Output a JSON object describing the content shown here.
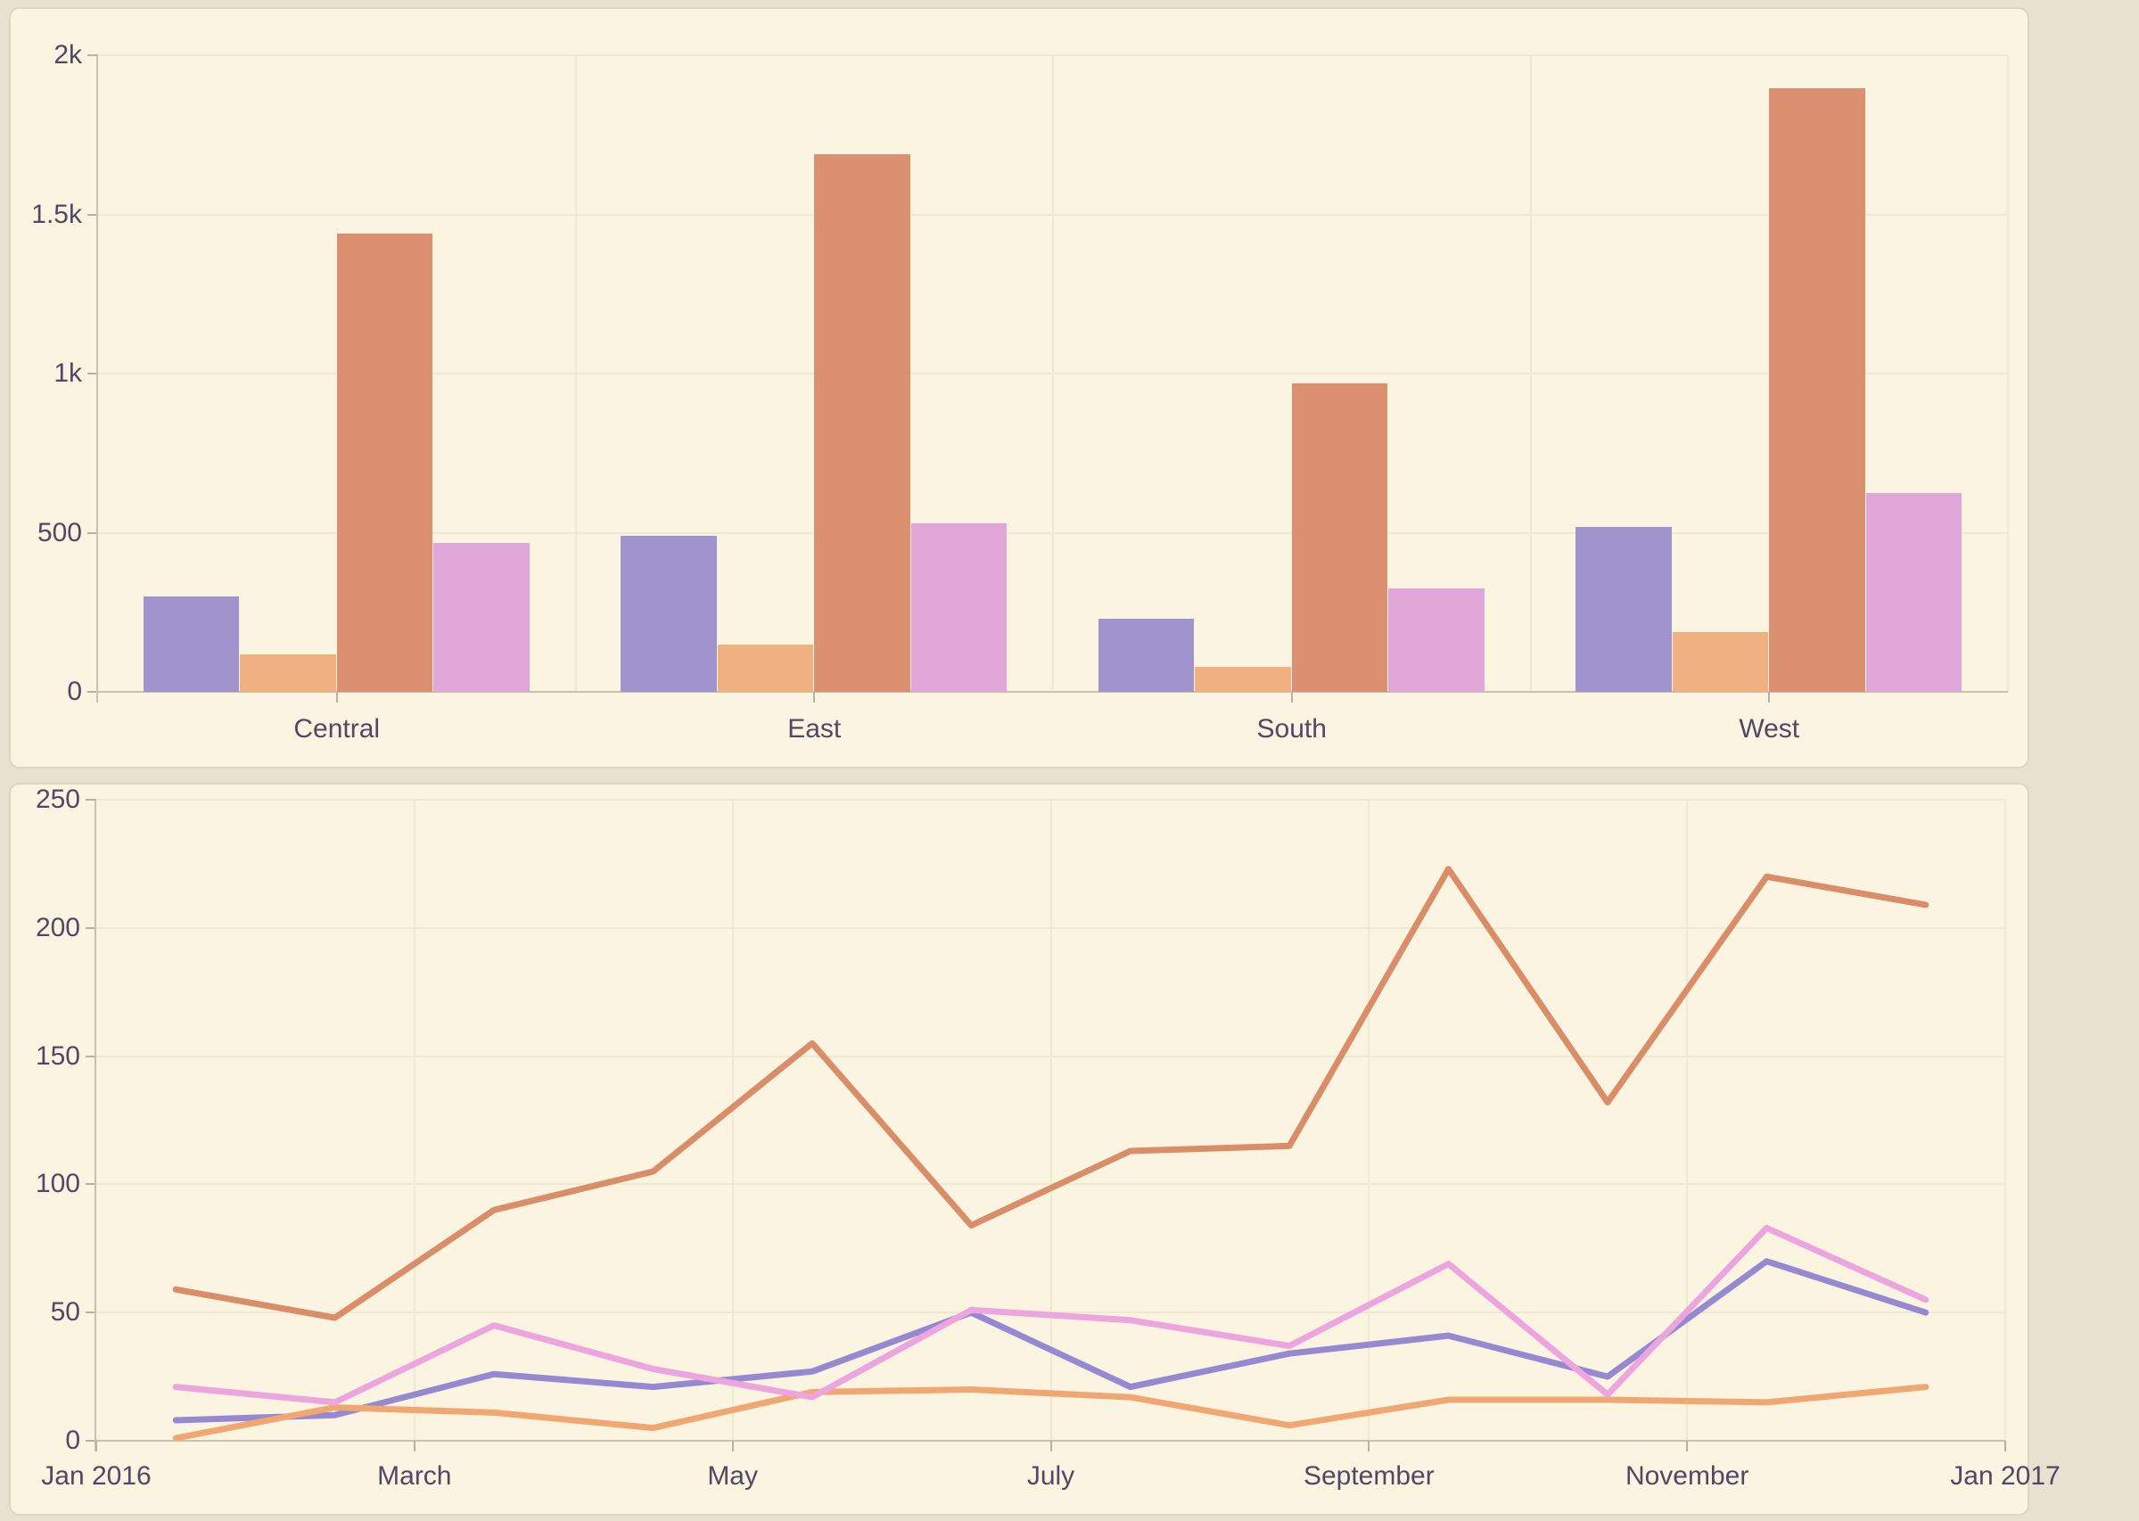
{
  "colors": {
    "page_bg": "#e9e1d0",
    "panel_bg": "#fbf4e1",
    "panel_border": "#ddd6c1",
    "grid": "#f1e8d1",
    "axis_line": "#c9c2af",
    "tick_mark": "#b8b19e",
    "label_text": "#504864"
  },
  "chart_data": [
    {
      "type": "bar",
      "title": "",
      "xlabel": "",
      "ylabel": "",
      "categories": [
        "Central",
        "East",
        "South",
        "West"
      ],
      "series": [
        {
          "color": "#a193ce",
          "values": [
            300,
            490,
            230,
            518
          ]
        },
        {
          "color": "#f0b07f",
          "values": [
            118,
            148,
            78,
            188
          ]
        },
        {
          "color": "#db9170",
          "values": [
            1440,
            1690,
            970,
            1895
          ]
        },
        {
          "color": "#e0a6d8",
          "values": [
            468,
            530,
            325,
            625
          ]
        }
      ],
      "ylim": [
        0,
        2000
      ],
      "ytick_step": 500,
      "ytick_labels": [
        "0",
        "500",
        "1k",
        "1.5k",
        "2k"
      ],
      "grid": true,
      "legend_position": "none"
    },
    {
      "type": "line",
      "title": "",
      "xlabel": "",
      "ylabel": "",
      "x_tick_labels": [
        "Jan 2016",
        "March",
        "May",
        "July",
        "September",
        "November",
        "Jan 2017"
      ],
      "months_per_tick_label": 2,
      "series": [
        {
          "color": "#9689d1",
          "values": [
            8,
            10,
            26,
            21,
            27,
            50,
            21,
            34,
            41,
            25,
            70,
            50
          ]
        },
        {
          "color": "#f1a772",
          "values": [
            1,
            13,
            11,
            5,
            19,
            20,
            17,
            6,
            16,
            16,
            15,
            21
          ]
        },
        {
          "color": "#d98d68",
          "values": [
            59,
            48,
            90,
            105,
            155,
            84,
            113,
            115,
            223,
            132,
            220,
            209
          ]
        },
        {
          "color": "#eca5de",
          "values": [
            21,
            15,
            45,
            28,
            17,
            51,
            47,
            37,
            69,
            18,
            83,
            55
          ]
        }
      ],
      "ylim": [
        0,
        250
      ],
      "ytick_step": 50,
      "ytick_labels": [
        "0",
        "50",
        "100",
        "150",
        "200",
        "250"
      ],
      "grid": true,
      "legend_position": "none"
    }
  ]
}
